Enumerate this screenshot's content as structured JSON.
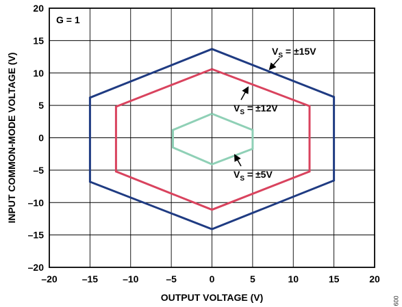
{
  "chart_data": {
    "type": "line",
    "xlabel": "OUTPUT VOLTAGE (V)",
    "ylabel": "INPUT COMMON-MODE VOLTAGE (V)",
    "xlim": [
      -20,
      20
    ],
    "ylim": [
      -20,
      20
    ],
    "x_ticks": [
      -20,
      -15,
      -10,
      -5,
      0,
      5,
      10,
      15,
      20
    ],
    "y_ticks": [
      -20,
      -15,
      -10,
      -5,
      0,
      5,
      10,
      15,
      20
    ],
    "x_tick_labels": [
      "–20",
      "–15",
      "–10",
      "–5",
      "0",
      "5",
      "10",
      "15",
      "20"
    ],
    "y_tick_labels": [
      "–20",
      "–15",
      "–10",
      "–5",
      "0",
      "5",
      "10",
      "15",
      "20"
    ],
    "grid": true,
    "gain_label": "G = 1",
    "series": [
      {
        "color": "#1f3b82",
        "x": [
          0,
          15,
          15,
          0,
          -15,
          -15,
          0
        ],
        "y": [
          13.7,
          6.3,
          -6.6,
          -14.1,
          -6.8,
          6.2,
          13.7
        ]
      },
      {
        "color": "#d9435e",
        "x": [
          0,
          12,
          12,
          0,
          -11.8,
          -11.8,
          0
        ],
        "y": [
          10.6,
          4.9,
          -5.2,
          -11.1,
          -5.2,
          4.8,
          10.6
        ]
      },
      {
        "color": "#8fd0b6",
        "x": [
          0,
          5,
          5,
          0,
          -4.8,
          -4.8,
          0
        ],
        "y": [
          3.7,
          1.2,
          -1.7,
          -4.1,
          -1.5,
          1.2,
          3.7
        ]
      }
    ],
    "annotations": [
      {
        "main": "V",
        "sub": "S",
        "rest": " = ±15V"
      },
      {
        "main": "V",
        "sub": "S",
        "rest": " = ±12V"
      },
      {
        "main": "V",
        "sub": "S",
        "rest": " = ±5V"
      }
    ]
  },
  "figure_number": "009"
}
